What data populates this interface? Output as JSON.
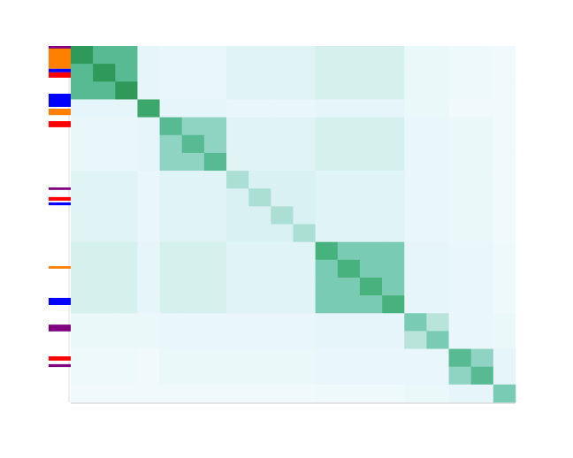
{
  "chart_data": {
    "type": "heatmap",
    "zlim": [
      0,
      1
    ],
    "colorscale": [
      "#f7fcfd",
      "#e5f5f9",
      "#ccece6",
      "#99d8c9",
      "#66c2a4",
      "#41ae76",
      "#238b45",
      "#006d2c",
      "#00441b"
    ],
    "z": [
      [
        0.7,
        0.55,
        0.55,
        0.12,
        0.1,
        0.1,
        0.1,
        0.15,
        0.15,
        0.15,
        0.15,
        0.2,
        0.2,
        0.2,
        0.2,
        0.08,
        0.08,
        0.06,
        0.06,
        0.05
      ],
      [
        0.55,
        0.7,
        0.55,
        0.12,
        0.1,
        0.1,
        0.1,
        0.15,
        0.15,
        0.15,
        0.15,
        0.2,
        0.2,
        0.2,
        0.2,
        0.08,
        0.08,
        0.06,
        0.06,
        0.05
      ],
      [
        0.55,
        0.55,
        0.7,
        0.12,
        0.1,
        0.1,
        0.1,
        0.15,
        0.15,
        0.15,
        0.15,
        0.2,
        0.2,
        0.2,
        0.2,
        0.08,
        0.08,
        0.06,
        0.06,
        0.05
      ],
      [
        0.12,
        0.12,
        0.12,
        0.65,
        0.12,
        0.12,
        0.12,
        0.1,
        0.1,
        0.1,
        0.1,
        0.12,
        0.12,
        0.12,
        0.12,
        0.08,
        0.08,
        0.05,
        0.05,
        0.05
      ],
      [
        0.1,
        0.1,
        0.1,
        0.12,
        0.55,
        0.4,
        0.4,
        0.15,
        0.15,
        0.15,
        0.15,
        0.2,
        0.2,
        0.2,
        0.2,
        0.1,
        0.1,
        0.08,
        0.08,
        0.05
      ],
      [
        0.1,
        0.1,
        0.1,
        0.12,
        0.4,
        0.55,
        0.4,
        0.15,
        0.15,
        0.15,
        0.15,
        0.2,
        0.2,
        0.2,
        0.2,
        0.1,
        0.1,
        0.08,
        0.08,
        0.05
      ],
      [
        0.1,
        0.1,
        0.1,
        0.12,
        0.4,
        0.4,
        0.55,
        0.15,
        0.15,
        0.15,
        0.15,
        0.2,
        0.2,
        0.2,
        0.2,
        0.1,
        0.1,
        0.08,
        0.08,
        0.05
      ],
      [
        0.15,
        0.15,
        0.15,
        0.1,
        0.15,
        0.15,
        0.15,
        0.33,
        0.18,
        0.18,
        0.18,
        0.15,
        0.15,
        0.15,
        0.15,
        0.1,
        0.1,
        0.08,
        0.08,
        0.05
      ],
      [
        0.15,
        0.15,
        0.15,
        0.1,
        0.15,
        0.15,
        0.15,
        0.18,
        0.33,
        0.18,
        0.18,
        0.15,
        0.15,
        0.15,
        0.15,
        0.1,
        0.1,
        0.08,
        0.08,
        0.05
      ],
      [
        0.15,
        0.15,
        0.15,
        0.1,
        0.15,
        0.15,
        0.15,
        0.18,
        0.18,
        0.33,
        0.18,
        0.15,
        0.15,
        0.15,
        0.15,
        0.1,
        0.1,
        0.08,
        0.08,
        0.05
      ],
      [
        0.15,
        0.15,
        0.15,
        0.1,
        0.15,
        0.15,
        0.15,
        0.18,
        0.18,
        0.18,
        0.33,
        0.15,
        0.15,
        0.15,
        0.15,
        0.1,
        0.1,
        0.08,
        0.08,
        0.05
      ],
      [
        0.2,
        0.2,
        0.2,
        0.12,
        0.2,
        0.2,
        0.2,
        0.15,
        0.15,
        0.15,
        0.15,
        0.6,
        0.45,
        0.45,
        0.45,
        0.12,
        0.12,
        0.1,
        0.1,
        0.06
      ],
      [
        0.2,
        0.2,
        0.2,
        0.12,
        0.2,
        0.2,
        0.2,
        0.15,
        0.15,
        0.15,
        0.15,
        0.45,
        0.6,
        0.45,
        0.45,
        0.12,
        0.12,
        0.1,
        0.1,
        0.06
      ],
      [
        0.2,
        0.2,
        0.2,
        0.12,
        0.2,
        0.2,
        0.2,
        0.15,
        0.15,
        0.15,
        0.15,
        0.45,
        0.45,
        0.6,
        0.45,
        0.12,
        0.12,
        0.1,
        0.1,
        0.06
      ],
      [
        0.2,
        0.2,
        0.2,
        0.12,
        0.2,
        0.2,
        0.2,
        0.15,
        0.15,
        0.15,
        0.15,
        0.45,
        0.45,
        0.45,
        0.6,
        0.12,
        0.12,
        0.1,
        0.1,
        0.06
      ],
      [
        0.08,
        0.08,
        0.08,
        0.08,
        0.1,
        0.1,
        0.1,
        0.1,
        0.1,
        0.1,
        0.1,
        0.12,
        0.12,
        0.12,
        0.12,
        0.45,
        0.3,
        0.1,
        0.1,
        0.08
      ],
      [
        0.08,
        0.08,
        0.08,
        0.08,
        0.1,
        0.1,
        0.1,
        0.1,
        0.1,
        0.1,
        0.1,
        0.12,
        0.12,
        0.12,
        0.12,
        0.3,
        0.45,
        0.1,
        0.1,
        0.08
      ],
      [
        0.06,
        0.06,
        0.06,
        0.05,
        0.08,
        0.08,
        0.08,
        0.08,
        0.08,
        0.08,
        0.08,
        0.1,
        0.1,
        0.1,
        0.1,
        0.1,
        0.1,
        0.55,
        0.4,
        0.12
      ],
      [
        0.06,
        0.06,
        0.06,
        0.05,
        0.08,
        0.08,
        0.08,
        0.08,
        0.08,
        0.08,
        0.08,
        0.1,
        0.1,
        0.1,
        0.1,
        0.1,
        0.1,
        0.4,
        0.55,
        0.12
      ],
      [
        0.05,
        0.05,
        0.05,
        0.05,
        0.05,
        0.05,
        0.05,
        0.05,
        0.05,
        0.05,
        0.05,
        0.06,
        0.06,
        0.06,
        0.06,
        0.08,
        0.08,
        0.12,
        0.12,
        0.45
      ]
    ],
    "row_annotations": [
      {
        "color": "#800080",
        "start": 0,
        "end": 0.008
      },
      {
        "color": "#ff8000",
        "start": 0.007,
        "end": 0.064
      },
      {
        "color": "#0000ff",
        "start": 0.064,
        "end": 0.074
      },
      {
        "color": "#ff0000",
        "start": 0.074,
        "end": 0.089
      },
      {
        "color": "#0000ff",
        "start": 0.134,
        "end": 0.171
      },
      {
        "color": "#ff8000",
        "start": 0.176,
        "end": 0.194
      },
      {
        "color": "#ff0000",
        "start": 0.211,
        "end": 0.228
      },
      {
        "color": "#800080",
        "start": 0.397,
        "end": 0.404
      },
      {
        "color": "#ff0000",
        "start": 0.424,
        "end": 0.434
      },
      {
        "color": "#0000ff",
        "start": 0.439,
        "end": 0.447
      },
      {
        "color": "#ff8000",
        "start": 0.618,
        "end": 0.625
      },
      {
        "color": "#0000ff",
        "start": 0.707,
        "end": 0.727
      },
      {
        "color": "#800080",
        "start": 0.782,
        "end": 0.801
      },
      {
        "color": "#ff0000",
        "start": 0.871,
        "end": 0.883
      },
      {
        "color": "#800080",
        "start": 0.893,
        "end": 0.901
      }
    ]
  }
}
